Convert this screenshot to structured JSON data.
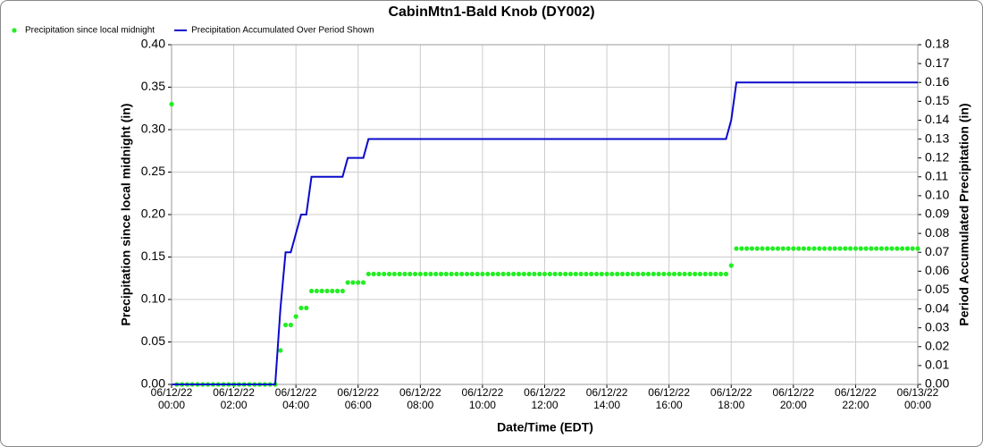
{
  "chart_data": {
    "type": "scatter-line",
    "title": "CabinMtn1-Bald Knob (DY002)",
    "x_label": "Date/Time (EDT)",
    "y_label": "Precipitation since local midnight (in)",
    "y2_label": "Period Accumulated Precipitation (in)",
    "legend": "top-left",
    "grid": true,
    "xlim": [
      "06/12/22 00:00",
      "06/13/22 00:00"
    ],
    "xticks": [
      "06/12/22 00:00",
      "06/12/22 02:00",
      "06/12/22 04:00",
      "06/12/22 06:00",
      "06/12/22 08:00",
      "06/12/22 10:00",
      "06/12/22 12:00",
      "06/12/22 14:00",
      "06/12/22 16:00",
      "06/12/22 18:00",
      "06/12/22 20:00",
      "06/12/22 22:00",
      "06/13/22 00:00"
    ],
    "ylim": [
      0,
      0.4
    ],
    "yticks": [
      {
        "value": 0,
        "label": "0.00"
      },
      {
        "value": 0.05,
        "label": "0.05"
      },
      {
        "value": 0.1,
        "label": "0.10"
      },
      {
        "value": 0.15,
        "label": "0.15"
      },
      {
        "value": 0.2,
        "label": "0.20"
      },
      {
        "value": 0.25,
        "label": "0.25"
      },
      {
        "value": 0.3,
        "label": "0.30"
      },
      {
        "value": 0.35,
        "label": "0.35"
      },
      {
        "value": 0.4,
        "label": "0.40"
      }
    ],
    "y2lim": [
      0,
      0.18
    ],
    "y2ticks": [
      {
        "value": 0,
        "label": "0.00"
      },
      {
        "value": 0.01,
        "label": "0.01"
      },
      {
        "value": 0.02,
        "label": "0.02"
      },
      {
        "value": 0.03,
        "label": "0.03"
      },
      {
        "value": 0.04,
        "label": "0.04"
      },
      {
        "value": 0.05,
        "label": "0.05"
      },
      {
        "value": 0.06,
        "label": "0.06"
      },
      {
        "value": 0.07,
        "label": "0.07"
      },
      {
        "value": 0.08,
        "label": "0.08"
      },
      {
        "value": 0.09,
        "label": "0.09"
      },
      {
        "value": 0.1,
        "label": "0.10"
      },
      {
        "value": 0.11,
        "label": "0.11"
      },
      {
        "value": 0.12,
        "label": "0.12"
      },
      {
        "value": 0.13,
        "label": "0.13"
      },
      {
        "value": 0.14,
        "label": "0.14"
      },
      {
        "value": 0.15,
        "label": "0.15"
      },
      {
        "value": 0.16,
        "label": "0.16"
      },
      {
        "value": 0.17,
        "label": "0.17"
      },
      {
        "value": 0.18,
        "label": "0.18"
      }
    ],
    "x": [
      "06/12/22 00:00",
      "06/12/22 00:10",
      "06/12/22 00:20",
      "06/12/22 00:30",
      "06/12/22 00:40",
      "06/12/22 00:50",
      "06/12/22 01:00",
      "06/12/22 01:10",
      "06/12/22 01:20",
      "06/12/22 01:30",
      "06/12/22 01:40",
      "06/12/22 01:50",
      "06/12/22 02:00",
      "06/12/22 02:10",
      "06/12/22 02:20",
      "06/12/22 02:30",
      "06/12/22 02:40",
      "06/12/22 02:50",
      "06/12/22 03:00",
      "06/12/22 03:10",
      "06/12/22 03:20",
      "06/12/22 03:30",
      "06/12/22 03:40",
      "06/12/22 03:50",
      "06/12/22 04:00",
      "06/12/22 04:10",
      "06/12/22 04:20",
      "06/12/22 04:30",
      "06/12/22 04:40",
      "06/12/22 04:50",
      "06/12/22 05:00",
      "06/12/22 05:10",
      "06/12/22 05:20",
      "06/12/22 05:30",
      "06/12/22 05:40",
      "06/12/22 05:50",
      "06/12/22 06:00",
      "06/12/22 06:10",
      "06/12/22 06:20",
      "06/12/22 06:30",
      "06/12/22 06:40",
      "06/12/22 06:50",
      "06/12/22 07:00",
      "06/12/22 07:10",
      "06/12/22 07:20",
      "06/12/22 07:30",
      "06/12/22 07:40",
      "06/12/22 07:50",
      "06/12/22 08:00",
      "06/12/22 08:10",
      "06/12/22 08:20",
      "06/12/22 08:30",
      "06/12/22 08:40",
      "06/12/22 08:50",
      "06/12/22 09:00",
      "06/12/22 09:10",
      "06/12/22 09:20",
      "06/12/22 09:30",
      "06/12/22 09:40",
      "06/12/22 09:50",
      "06/12/22 10:00",
      "06/12/22 10:10",
      "06/12/22 10:20",
      "06/12/22 10:30",
      "06/12/22 10:40",
      "06/12/22 10:50",
      "06/12/22 11:00",
      "06/12/22 11:10",
      "06/12/22 11:20",
      "06/12/22 11:30",
      "06/12/22 11:40",
      "06/12/22 11:50",
      "06/12/22 12:00",
      "06/12/22 12:10",
      "06/12/22 12:20",
      "06/12/22 12:30",
      "06/12/22 12:40",
      "06/12/22 12:50",
      "06/12/22 13:00",
      "06/12/22 13:10",
      "06/12/22 13:20",
      "06/12/22 13:30",
      "06/12/22 13:40",
      "06/12/22 13:50",
      "06/12/22 14:00",
      "06/12/22 14:10",
      "06/12/22 14:20",
      "06/12/22 14:30",
      "06/12/22 14:40",
      "06/12/22 14:50",
      "06/12/22 15:00",
      "06/12/22 15:10",
      "06/12/22 15:20",
      "06/12/22 15:30",
      "06/12/22 15:40",
      "06/12/22 15:50",
      "06/12/22 16:00",
      "06/12/22 16:10",
      "06/12/22 16:20",
      "06/12/22 16:30",
      "06/12/22 16:40",
      "06/12/22 16:50",
      "06/12/22 17:00",
      "06/12/22 17:10",
      "06/12/22 17:20",
      "06/12/22 17:30",
      "06/12/22 17:40",
      "06/12/22 17:50",
      "06/12/22 18:00",
      "06/12/22 18:10",
      "06/12/22 18:20",
      "06/12/22 18:30",
      "06/12/22 18:40",
      "06/12/22 18:50",
      "06/12/22 19:00",
      "06/12/22 19:10",
      "06/12/22 19:20",
      "06/12/22 19:30",
      "06/12/22 19:40",
      "06/12/22 19:50",
      "06/12/22 20:00",
      "06/12/22 20:10",
      "06/12/22 20:20",
      "06/12/22 20:30",
      "06/12/22 20:40",
      "06/12/22 20:50",
      "06/12/22 21:00",
      "06/12/22 21:10",
      "06/12/22 21:20",
      "06/12/22 21:30",
      "06/12/22 21:40",
      "06/12/22 21:50",
      "06/12/22 22:00",
      "06/12/22 22:10",
      "06/12/22 22:20",
      "06/12/22 22:30",
      "06/12/22 22:40",
      "06/12/22 22:50",
      "06/12/22 23:00",
      "06/12/22 23:10",
      "06/12/22 23:20",
      "06/12/22 23:30",
      "06/12/22 23:40",
      "06/12/22 23:50",
      "06/13/22 00:00"
    ],
    "series": [
      {
        "name": "Precipitation since local midnight",
        "color": "#22ee22",
        "style": "points",
        "values": [
          0.33,
          0,
          0,
          0,
          0,
          0,
          0,
          0,
          0,
          0,
          0,
          0,
          0,
          0,
          0,
          0,
          0,
          0,
          0,
          0,
          0,
          0.04,
          0.07,
          0.07,
          0.08,
          0.09,
          0.09,
          0.11,
          0.11,
          0.11,
          0.11,
          0.11,
          0.11,
          0.11,
          0.12,
          0.12,
          0.12,
          0.12,
          0.13,
          0.13,
          0.13,
          0.13,
          0.13,
          0.13,
          0.13,
          0.13,
          0.13,
          0.13,
          0.13,
          0.13,
          0.13,
          0.13,
          0.13,
          0.13,
          0.13,
          0.13,
          0.13,
          0.13,
          0.13,
          0.13,
          0.13,
          0.13,
          0.13,
          0.13,
          0.13,
          0.13,
          0.13,
          0.13,
          0.13,
          0.13,
          0.13,
          0.13,
          0.13,
          0.13,
          0.13,
          0.13,
          0.13,
          0.13,
          0.13,
          0.13,
          0.13,
          0.13,
          0.13,
          0.13,
          0.13,
          0.13,
          0.13,
          0.13,
          0.13,
          0.13,
          0.13,
          0.13,
          0.13,
          0.13,
          0.13,
          0.13,
          0.13,
          0.13,
          0.13,
          0.13,
          0.13,
          0.13,
          0.13,
          0.13,
          0.13,
          0.13,
          0.13,
          0.13,
          0.14,
          0.16,
          0.16,
          0.16,
          0.16,
          0.16,
          0.16,
          0.16,
          0.16,
          0.16,
          0.16,
          0.16,
          0.16,
          0.16,
          0.16,
          0.16,
          0.16,
          0.16,
          0.16,
          0.16,
          0.16,
          0.16,
          0.16,
          0.16,
          0.16,
          0.16,
          0.16,
          0.16,
          0.16,
          0.16,
          0.16,
          0.16,
          0.16,
          0.16,
          0.16,
          0.16,
          0.16
        ]
      },
      {
        "name": "Precipitation Accumulated Over Period Shown",
        "color": "#0a0acc",
        "style": "line",
        "axis": "y2",
        "values": [
          0,
          0,
          0,
          0,
          0,
          0,
          0,
          0,
          0,
          0,
          0,
          0,
          0,
          0,
          0,
          0,
          0,
          0,
          0,
          0,
          0,
          0.04,
          0.07,
          0.07,
          0.08,
          0.09,
          0.09,
          0.11,
          0.11,
          0.11,
          0.11,
          0.11,
          0.11,
          0.11,
          0.12,
          0.12,
          0.12,
          0.12,
          0.13,
          0.13,
          0.13,
          0.13,
          0.13,
          0.13,
          0.13,
          0.13,
          0.13,
          0.13,
          0.13,
          0.13,
          0.13,
          0.13,
          0.13,
          0.13,
          0.13,
          0.13,
          0.13,
          0.13,
          0.13,
          0.13,
          0.13,
          0.13,
          0.13,
          0.13,
          0.13,
          0.13,
          0.13,
          0.13,
          0.13,
          0.13,
          0.13,
          0.13,
          0.13,
          0.13,
          0.13,
          0.13,
          0.13,
          0.13,
          0.13,
          0.13,
          0.13,
          0.13,
          0.13,
          0.13,
          0.13,
          0.13,
          0.13,
          0.13,
          0.13,
          0.13,
          0.13,
          0.13,
          0.13,
          0.13,
          0.13,
          0.13,
          0.13,
          0.13,
          0.13,
          0.13,
          0.13,
          0.13,
          0.13,
          0.13,
          0.13,
          0.13,
          0.13,
          0.13,
          0.14,
          0.16,
          0.16,
          0.16,
          0.16,
          0.16,
          0.16,
          0.16,
          0.16,
          0.16,
          0.16,
          0.16,
          0.16,
          0.16,
          0.16,
          0.16,
          0.16,
          0.16,
          0.16,
          0.16,
          0.16,
          0.16,
          0.16,
          0.16,
          0.16,
          0.16,
          0.16,
          0.16,
          0.16,
          0.16,
          0.16,
          0.16,
          0.16,
          0.16,
          0.16,
          0.16,
          0.16
        ]
      }
    ]
  }
}
